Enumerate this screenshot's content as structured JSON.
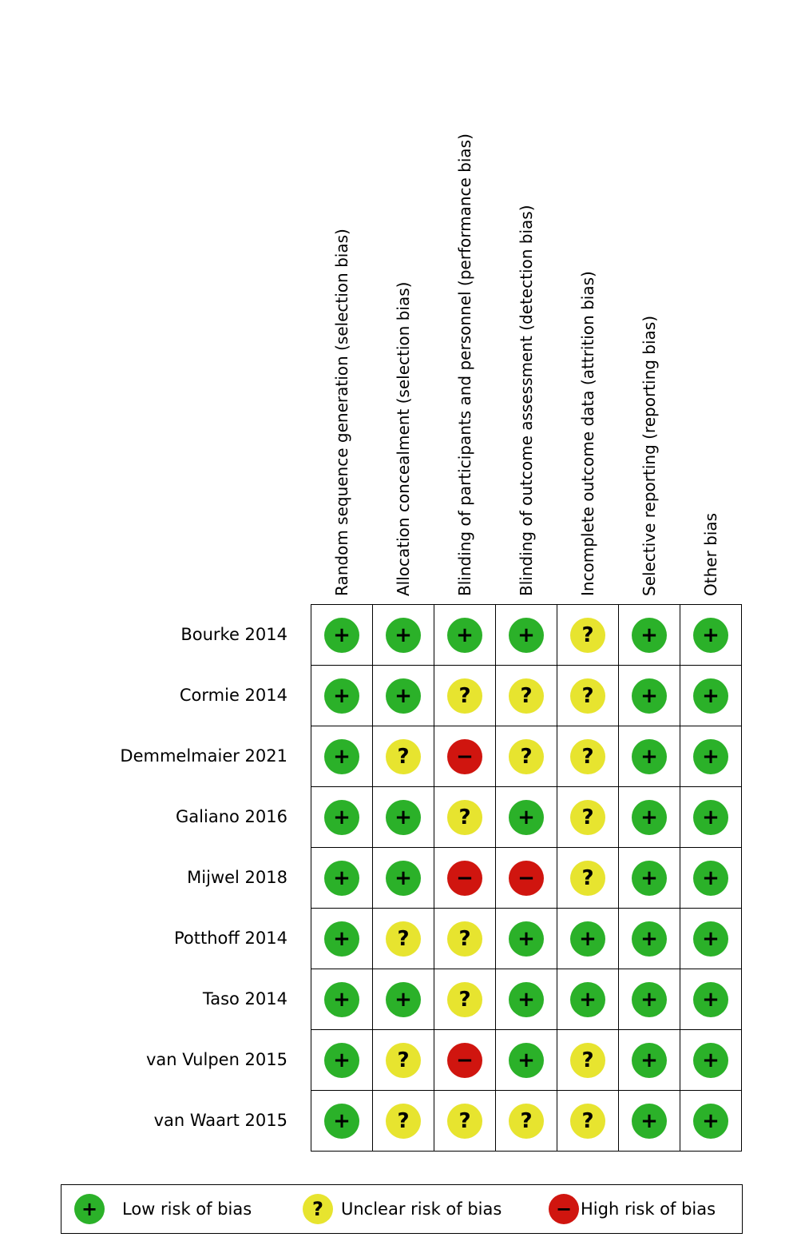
{
  "chart_data": {
    "type": "heatmap",
    "title": "",
    "columns": [
      "Random sequence generation (selection bias)",
      "Allocation concealment (selection bias)",
      "Blinding of participants and personnel (performance bias)",
      "Blinding of outcome assessment (detection bias)",
      "Incomplete outcome data (attrition bias)",
      "Selective reporting (reporting bias)",
      "Other bias"
    ],
    "rows": [
      {
        "study": "Bourke 2014",
        "values": [
          "+",
          "+",
          "+",
          "+",
          "?",
          "+",
          "+"
        ]
      },
      {
        "study": "Cormie 2014",
        "values": [
          "+",
          "+",
          "?",
          "?",
          "?",
          "+",
          "+"
        ]
      },
      {
        "study": "Demmelmaier 2021",
        "values": [
          "+",
          "?",
          "-",
          "?",
          "?",
          "+",
          "+"
        ]
      },
      {
        "study": "Galiano 2016",
        "values": [
          "+",
          "+",
          "?",
          "+",
          "?",
          "+",
          "+"
        ]
      },
      {
        "study": "Mijwel 2018",
        "values": [
          "+",
          "+",
          "-",
          "-",
          "?",
          "+",
          "+"
        ]
      },
      {
        "study": "Potthoff 2014",
        "values": [
          "+",
          "?",
          "?",
          "+",
          "+",
          "+",
          "+"
        ]
      },
      {
        "study": "Taso 2014",
        "values": [
          "+",
          "+",
          "?",
          "+",
          "+",
          "+",
          "+"
        ]
      },
      {
        "study": "van Vulpen 2015",
        "values": [
          "+",
          "?",
          "-",
          "+",
          "?",
          "+",
          "+"
        ]
      },
      {
        "study": "van Waart 2015",
        "values": [
          "+",
          "?",
          "?",
          "?",
          "?",
          "+",
          "+"
        ]
      }
    ],
    "symbols": {
      "+": "+",
      "?": "?",
      "-": "−"
    },
    "value_names": {
      "+": "low-risk",
      "?": "unclear-risk",
      "-": "high-risk"
    },
    "value_meanings": {
      "+": "Low risk of bias",
      "?": "Unclear risk of bias",
      "-": "High risk of bias"
    },
    "colors": {
      "+": "#2bb129",
      "?": "#e7e42f",
      "-": "#d0150f"
    },
    "legend_position": "bottom",
    "grid": true
  },
  "legend": {
    "items": [
      {
        "symbol": "+",
        "label": "Low risk of bias",
        "color": "#2bb129"
      },
      {
        "symbol": "?",
        "label": "Unclear risk of bias",
        "color": "#e7e42f"
      },
      {
        "symbol": "−",
        "label": "High risk of bias",
        "color": "#d0150f"
      }
    ]
  }
}
